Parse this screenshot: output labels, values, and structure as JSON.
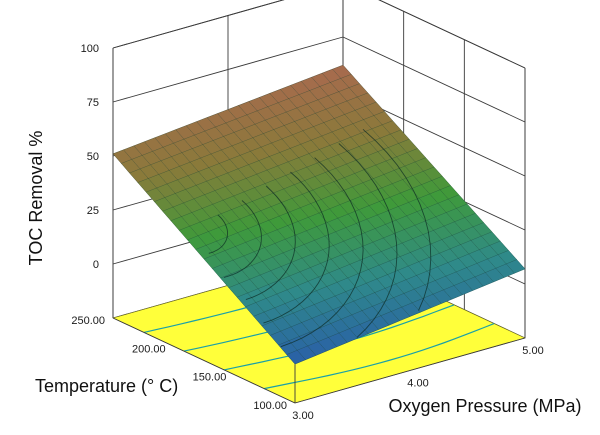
{
  "chart_data": {
    "type": "surface3d",
    "title": "",
    "zlabel": "TOC Removal %",
    "xlabel": "Oxygen Pressure (MPa)",
    "ylabel": "Temperature (° C)",
    "x_range": [
      3,
      5
    ],
    "y_range": [
      100,
      250
    ],
    "z_range": [
      -25,
      100
    ],
    "x_ticks": [
      "3.00",
      "4.00",
      "5.00"
    ],
    "y_ticks": [
      "100.00",
      "150.00",
      "200.00",
      "250.00"
    ],
    "z_ticks": [
      "0",
      "25",
      "50",
      "75",
      "100"
    ],
    "surface_corners": [
      {
        "x": 3,
        "y": 100,
        "z": -7
      },
      {
        "x": 5,
        "y": 100,
        "z": 7
      },
      {
        "x": 3,
        "y": 250,
        "z": 51
      },
      {
        "x": 5,
        "y": 250,
        "z": 62
      }
    ],
    "colormap": [
      "#2a5fa8",
      "#2f8a8a",
      "#3f9a3a",
      "#8a7a3a",
      "#a86a4e"
    ],
    "base_color": "#ffff3a"
  }
}
